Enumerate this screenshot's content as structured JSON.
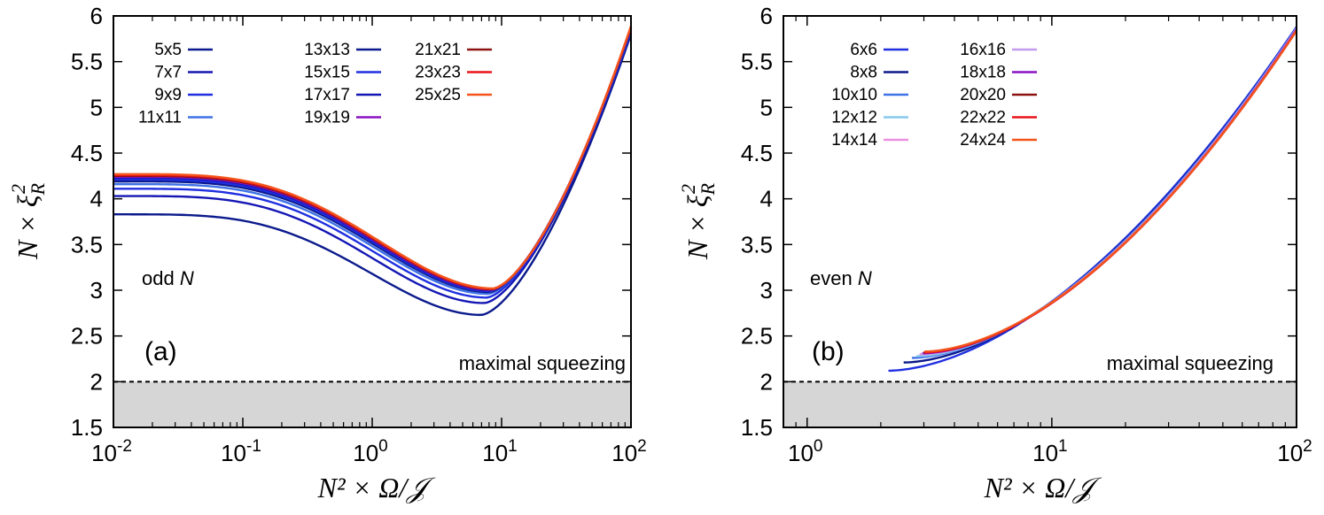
{
  "colors": {
    "dark_navy": "#0b1a8c",
    "navy": "#1416b4",
    "blue": "#1f2fe0",
    "mid_blue": "#3f72e6",
    "light_blue": "#86c8ee",
    "pink": "#ea8fe0",
    "lavender": "#c49af0",
    "purple": "#8a12c4",
    "dark_red": "#8c1212",
    "red": "#e8141a",
    "orange_red": "#f4541a",
    "shade": "#d6d6d6"
  },
  "chart_data": [
    {
      "type": "line",
      "panel": "(a)",
      "title": "",
      "annotation": "odd",
      "annotation_var": "N",
      "xlabel": "N² × Ω/𝒥",
      "ylabel": "N × ξ",
      "ylabel_sup": "2",
      "ylabel_sub": "R",
      "xscale": "log",
      "xlim": [
        0.01,
        100
      ],
      "ylim": [
        1.5,
        6
      ],
      "x_ticks": [
        {
          "value": 0.01,
          "base": "10",
          "exp": "-2"
        },
        {
          "value": 0.1,
          "base": "10",
          "exp": "-1"
        },
        {
          "value": 1,
          "base": "10",
          "exp": "0"
        },
        {
          "value": 10,
          "base": "10",
          "exp": "1"
        },
        {
          "value": 100,
          "base": "10",
          "exp": "2"
        }
      ],
      "y_ticks": [
        "1.5",
        "2",
        "2.5",
        "3",
        "3.5",
        "4",
        "4.5",
        "5",
        "5.5",
        "6"
      ],
      "reference_line": {
        "y": 2.0,
        "label": "maximal squeezing",
        "style": "dashed",
        "shaded_below": true
      },
      "legend_placement": "top",
      "legend": [
        "5x5",
        "7x7",
        "9x9",
        "11x11",
        "13x13",
        "15x15",
        "17x17",
        "19x19",
        "21x21",
        "23x23",
        "25x25"
      ],
      "curve_model": "N·ξR² ≈ y0 at small x, dip with minimum near x≈7–9, then rises to ≈5.8–5.9 at x=100",
      "series": [
        {
          "name": "5x5",
          "color": "#0b1a8c",
          "y_low": 3.83,
          "y_min": 2.73,
          "x_min": 7.0,
          "y_end": 5.8
        },
        {
          "name": "7x7",
          "color": "#1416b4",
          "y_low": 4.03,
          "y_min": 2.86,
          "x_min": 7.4,
          "y_end": 5.82
        },
        {
          "name": "9x9",
          "color": "#1f2fe0",
          "y_low": 4.11,
          "y_min": 2.92,
          "x_min": 7.7,
          "y_end": 5.84
        },
        {
          "name": "11x11",
          "color": "#3f72e6",
          "y_low": 4.16,
          "y_min": 2.96,
          "x_min": 7.9,
          "y_end": 5.85
        },
        {
          "name": "13x13",
          "color": "#0b1a8c",
          "y_low": 4.19,
          "y_min": 2.98,
          "x_min": 8.1,
          "y_end": 5.86
        },
        {
          "name": "15x15",
          "color": "#1f2fe0",
          "y_low": 4.21,
          "y_min": 2.99,
          "x_min": 8.2,
          "y_end": 5.87
        },
        {
          "name": "17x17",
          "color": "#1416b4",
          "y_low": 4.23,
          "y_min": 3.0,
          "x_min": 8.3,
          "y_end": 5.87
        },
        {
          "name": "19x19",
          "color": "#8a12c4",
          "y_low": 4.24,
          "y_min": 3.005,
          "x_min": 8.4,
          "y_end": 5.88
        },
        {
          "name": "21x21",
          "color": "#8c1212",
          "y_low": 4.25,
          "y_min": 3.01,
          "x_min": 8.5,
          "y_end": 5.88
        },
        {
          "name": "23x23",
          "color": "#e8141a",
          "y_low": 4.26,
          "y_min": 3.015,
          "x_min": 8.55,
          "y_end": 5.88
        },
        {
          "name": "25x25",
          "color": "#f4541a",
          "y_low": 4.27,
          "y_min": 3.02,
          "x_min": 8.6,
          "y_end": 5.89
        }
      ]
    },
    {
      "type": "line",
      "panel": "(b)",
      "title": "",
      "annotation": "even",
      "annotation_var": "N",
      "xlabel": "N² × Ω/𝒥",
      "ylabel": "N × ξ",
      "ylabel_sup": "2",
      "ylabel_sub": "R",
      "xscale": "log",
      "xlim": [
        0.8,
        100
      ],
      "ylim": [
        1.5,
        6
      ],
      "x_ticks": [
        {
          "value": 1,
          "base": "10",
          "exp": "0"
        },
        {
          "value": 10,
          "base": "10",
          "exp": "1"
        },
        {
          "value": 100,
          "base": "10",
          "exp": "2"
        }
      ],
      "y_ticks": [
        "1.5",
        "2",
        "2.5",
        "3",
        "3.5",
        "4",
        "4.5",
        "5",
        "5.5",
        "6"
      ],
      "reference_line": {
        "y": 2.0,
        "label": "maximal squeezing",
        "style": "dashed",
        "shaded_below": true
      },
      "legend_placement": "top",
      "legend": [
        "6x6",
        "8x8",
        "10x10",
        "12x12",
        "14x14",
        "16x16",
        "18x18",
        "20x20",
        "22x22",
        "24x24"
      ],
      "curve_model": "curves start at x_start and rise monotonically to ≈5.85 at x=100",
      "series": [
        {
          "name": "6x6",
          "color": "#1f2fe0",
          "x_start": 2.15,
          "y_start": 2.12,
          "y_end": 5.88
        },
        {
          "name": "8x8",
          "color": "#0b1a8c",
          "x_start": 2.48,
          "y_start": 2.21,
          "y_end": 5.87
        },
        {
          "name": "10x10",
          "color": "#3f72e6",
          "x_start": 2.68,
          "y_start": 2.26,
          "y_end": 5.87
        },
        {
          "name": "12x12",
          "color": "#86c8ee",
          "x_start": 2.8,
          "y_start": 2.28,
          "y_end": 5.86
        },
        {
          "name": "14x14",
          "color": "#ea8fe0",
          "x_start": 2.88,
          "y_start": 2.3,
          "y_end": 5.86
        },
        {
          "name": "16x16",
          "color": "#c49af0",
          "x_start": 2.93,
          "y_start": 2.31,
          "y_end": 5.85
        },
        {
          "name": "18x18",
          "color": "#8a12c4",
          "x_start": 2.97,
          "y_start": 2.31,
          "y_end": 5.85
        },
        {
          "name": "20x20",
          "color": "#8c1212",
          "x_start": 2.99,
          "y_start": 2.32,
          "y_end": 5.84
        },
        {
          "name": "22x22",
          "color": "#e8141a",
          "x_start": 3.01,
          "y_start": 2.32,
          "y_end": 5.84
        },
        {
          "name": "24x24",
          "color": "#f4541a",
          "x_start": 3.02,
          "y_start": 2.33,
          "y_end": 5.84
        }
      ]
    }
  ]
}
